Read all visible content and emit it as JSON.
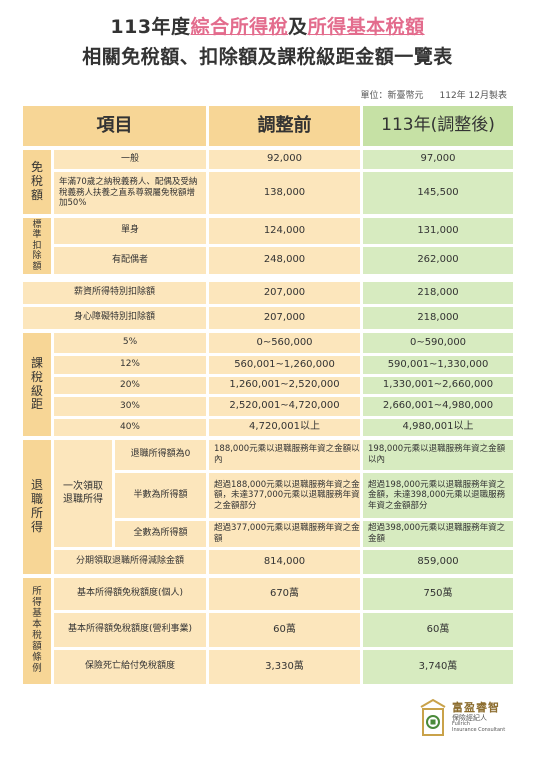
{
  "title": {
    "line1_a": "113年度",
    "line1_b": "綜合所得稅",
    "line1_c": "及",
    "line1_d": "所得基本稅額",
    "line2": "相關免稅額、扣除額及課稅級距金額一覽表"
  },
  "unit": {
    "label": "單位：新臺幣元",
    "date": "112年 12月製表"
  },
  "header": {
    "item": "項目",
    "before": "調整前",
    "after": "113年(調整後)"
  },
  "exemption": {
    "category_chars": [
      "免",
      "稅",
      "額"
    ],
    "rows": [
      {
        "label": "一般",
        "before": "92,000",
        "after": "97,000"
      },
      {
        "label": "年滿70歲之納稅義務人、配偶及受納稅義務人扶養之直系尊親屬免稅額增加50%",
        "before": "138,000",
        "after": "145,500"
      }
    ]
  },
  "standard": {
    "category_chars": [
      "標",
      "準",
      "扣",
      "除",
      "額"
    ],
    "rows": [
      {
        "label": "單身",
        "before": "124,000",
        "after": "131,000"
      },
      {
        "label": "有配偶者",
        "before": "248,000",
        "after": "262,000"
      }
    ]
  },
  "special": [
    {
      "label": "薪資所得特別扣除額",
      "before": "207,000",
      "after": "218,000"
    },
    {
      "label": "身心障礙特別扣除額",
      "before": "207,000",
      "after": "218,000"
    }
  ],
  "brackets": {
    "category_chars": [
      "課",
      "稅",
      "級",
      "距"
    ],
    "rows": [
      {
        "rate": "5%",
        "before": "0~560,000",
        "after": "0~590,000"
      },
      {
        "rate": "12%",
        "before": "560,001~1,260,000",
        "after": "590,001~1,330,000"
      },
      {
        "rate": "20%",
        "before": "1,260,001~2,520,000",
        "after": "1,330,001~2,660,000"
      },
      {
        "rate": "30%",
        "before": "2,520,001~4,720,000",
        "after": "2,660,001~4,980,000"
      },
      {
        "rate": "40%",
        "before": "4,720,001以上",
        "after": "4,980,001以上"
      }
    ]
  },
  "retirement": {
    "category_chars": [
      "退",
      "職",
      "所",
      "得"
    ],
    "lump_sum_label": "一次領取退職所得",
    "rows": [
      {
        "label": "退職所得額為0",
        "before": "188,000元乘以退職服務年資之金額以內",
        "after": "198,000元乘以退職服務年資之金額以內"
      },
      {
        "label": "半數為所得額",
        "before": "超過188,000元乘以退職服務年資之金額，未達377,000元乘以退職服務年資之金額部分",
        "after": "超過198,000元乘以退職服務年資之金額，未達398,000元乘以退職服務年資之金額部分"
      },
      {
        "label": "全數為所得額",
        "before": "超過377,000元乘以退職服務年資之金額",
        "after": "超過398,000元乘以退職服務年資之金額"
      }
    ],
    "installment": {
      "label": "分期領取退職所得減除金額",
      "before": "814,000",
      "after": "859,000"
    }
  },
  "basic_tax": {
    "category_chars": [
      "所",
      "得",
      "基",
      "本",
      "稅",
      "額",
      "條",
      "例"
    ],
    "rows": [
      {
        "label": "基本所得額免稅額度(個人)",
        "before": "670萬",
        "after": "750萬"
      },
      {
        "label": "基本所得額免稅額度(營利事業)",
        "before": "60萬",
        "after": "60萬"
      },
      {
        "label": "保險死亡給付免稅額度",
        "before": "3,330萬",
        "after": "3,740萬"
      }
    ]
  },
  "logo": {
    "name": "富盈睿智",
    "subtitle": "保險經紀人",
    "english_1": "Fullrich",
    "english_2": "Insurance Consultant",
    "color": "#c9a24a"
  }
}
